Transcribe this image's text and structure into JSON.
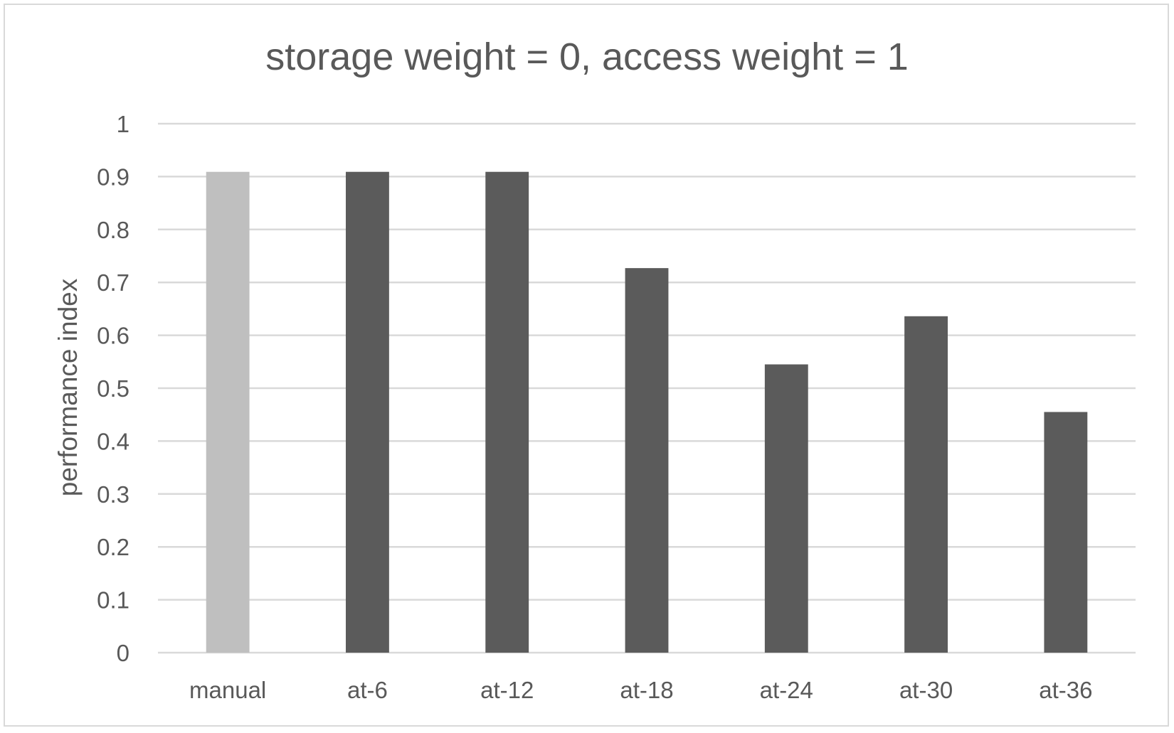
{
  "chart_data": {
    "type": "bar",
    "title": "storage weight = 0, access weight = 1",
    "xlabel": "",
    "ylabel": "performance index",
    "categories": [
      "manual",
      "at-6",
      "at-12",
      "at-18",
      "at-24",
      "at-30",
      "at-36"
    ],
    "values": [
      0.909,
      0.909,
      0.909,
      0.727,
      0.545,
      0.636,
      0.455
    ],
    "ylim": [
      0,
      1
    ],
    "yticks": [
      "0",
      "0.1",
      "0.2",
      "0.3",
      "0.4",
      "0.5",
      "0.6",
      "0.7",
      "0.8",
      "0.9",
      "1"
    ],
    "grid": true,
    "legend": "none",
    "colors": {
      "highlight": "#bfbfbf",
      "bars": "#5b5b5b",
      "gridlines": "#d9d9d9",
      "text": "#595959"
    }
  }
}
